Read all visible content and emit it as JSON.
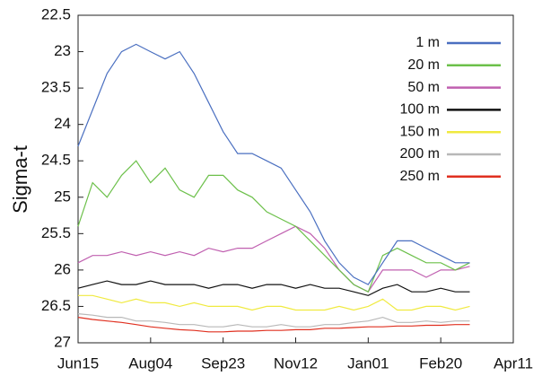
{
  "chart_data": {
    "type": "line",
    "y_label": "Sigma-t",
    "y_inverted": true,
    "x": [
      0,
      10,
      20,
      30,
      40,
      50,
      60,
      70,
      80,
      90,
      100,
      110,
      120,
      130,
      140,
      150,
      160,
      170,
      180,
      190,
      200,
      210,
      220,
      230,
      240,
      250,
      260,
      270
    ],
    "xlim": [
      0,
      300
    ],
    "xticks": [
      {
        "value": 0,
        "label": "Jun15"
      },
      {
        "value": 50,
        "label": "Aug04"
      },
      {
        "value": 100,
        "label": "Sep23"
      },
      {
        "value": 150,
        "label": "Nov12"
      },
      {
        "value": 200,
        "label": "Jan01"
      },
      {
        "value": 250,
        "label": "Feb20"
      },
      {
        "value": 300,
        "label": "Apr11"
      }
    ],
    "ylim": [
      22.5,
      27
    ],
    "yticks": [
      22.5,
      23,
      23.5,
      24,
      24.5,
      25,
      25.5,
      26,
      26.5,
      27
    ],
    "legend": "upper right",
    "series": [
      {
        "name": "1 m",
        "color": "#4a6fc0",
        "values": [
          24.3,
          23.8,
          23.3,
          23.0,
          22.9,
          23.0,
          23.1,
          23.0,
          23.3,
          23.7,
          24.1,
          24.4,
          24.4,
          24.5,
          24.6,
          24.9,
          25.2,
          25.6,
          25.9,
          26.1,
          26.2,
          25.9,
          25.6,
          25.6,
          25.7,
          25.8,
          25.9,
          25.9
        ]
      },
      {
        "name": "20 m",
        "color": "#6cc04a",
        "values": [
          25.4,
          24.8,
          25.0,
          24.7,
          24.5,
          24.8,
          24.6,
          24.9,
          25.0,
          24.7,
          24.7,
          24.9,
          25.0,
          25.2,
          25.3,
          25.4,
          25.6,
          25.8,
          26.0,
          26.2,
          26.3,
          25.8,
          25.7,
          25.8,
          25.9,
          25.9,
          26.0,
          25.9
        ]
      },
      {
        "name": "50 m",
        "color": "#c060b0",
        "values": [
          25.9,
          25.8,
          25.8,
          25.75,
          25.8,
          25.75,
          25.8,
          25.75,
          25.8,
          25.7,
          25.75,
          25.7,
          25.7,
          25.6,
          25.5,
          25.4,
          25.5,
          25.7,
          26.0,
          26.2,
          26.3,
          26.0,
          26.0,
          26.0,
          26.1,
          26.0,
          26.0,
          25.95
        ]
      },
      {
        "name": "100 m",
        "color": "#111111",
        "values": [
          26.25,
          26.2,
          26.15,
          26.2,
          26.2,
          26.15,
          26.2,
          26.2,
          26.2,
          26.25,
          26.2,
          26.2,
          26.25,
          26.2,
          26.2,
          26.25,
          26.2,
          26.25,
          26.25,
          26.3,
          26.35,
          26.25,
          26.2,
          26.3,
          26.3,
          26.25,
          26.3,
          26.3
        ]
      },
      {
        "name": "150 m",
        "color": "#f0ea40",
        "values": [
          26.35,
          26.35,
          26.4,
          26.45,
          26.4,
          26.45,
          26.45,
          26.5,
          26.45,
          26.5,
          26.5,
          26.5,
          26.55,
          26.5,
          26.5,
          26.55,
          26.55,
          26.55,
          26.5,
          26.55,
          26.5,
          26.4,
          26.55,
          26.55,
          26.5,
          26.5,
          26.55,
          26.5
        ]
      },
      {
        "name": "200 m",
        "color": "#b8b8b8",
        "values": [
          26.6,
          26.62,
          26.65,
          26.65,
          26.7,
          26.7,
          26.72,
          26.75,
          26.75,
          26.78,
          26.78,
          26.75,
          26.78,
          26.78,
          26.75,
          26.78,
          26.78,
          26.75,
          26.75,
          26.72,
          26.7,
          26.65,
          26.72,
          26.72,
          26.7,
          26.72,
          26.7,
          26.7
        ]
      },
      {
        "name": "250 m",
        "color": "#e03020",
        "values": [
          26.65,
          26.68,
          26.7,
          26.72,
          26.75,
          26.78,
          26.8,
          26.82,
          26.83,
          26.85,
          26.85,
          26.84,
          26.84,
          26.83,
          26.83,
          26.82,
          26.82,
          26.8,
          26.8,
          26.79,
          26.78,
          26.78,
          26.77,
          26.77,
          26.76,
          26.76,
          26.75,
          26.75
        ]
      }
    ]
  }
}
